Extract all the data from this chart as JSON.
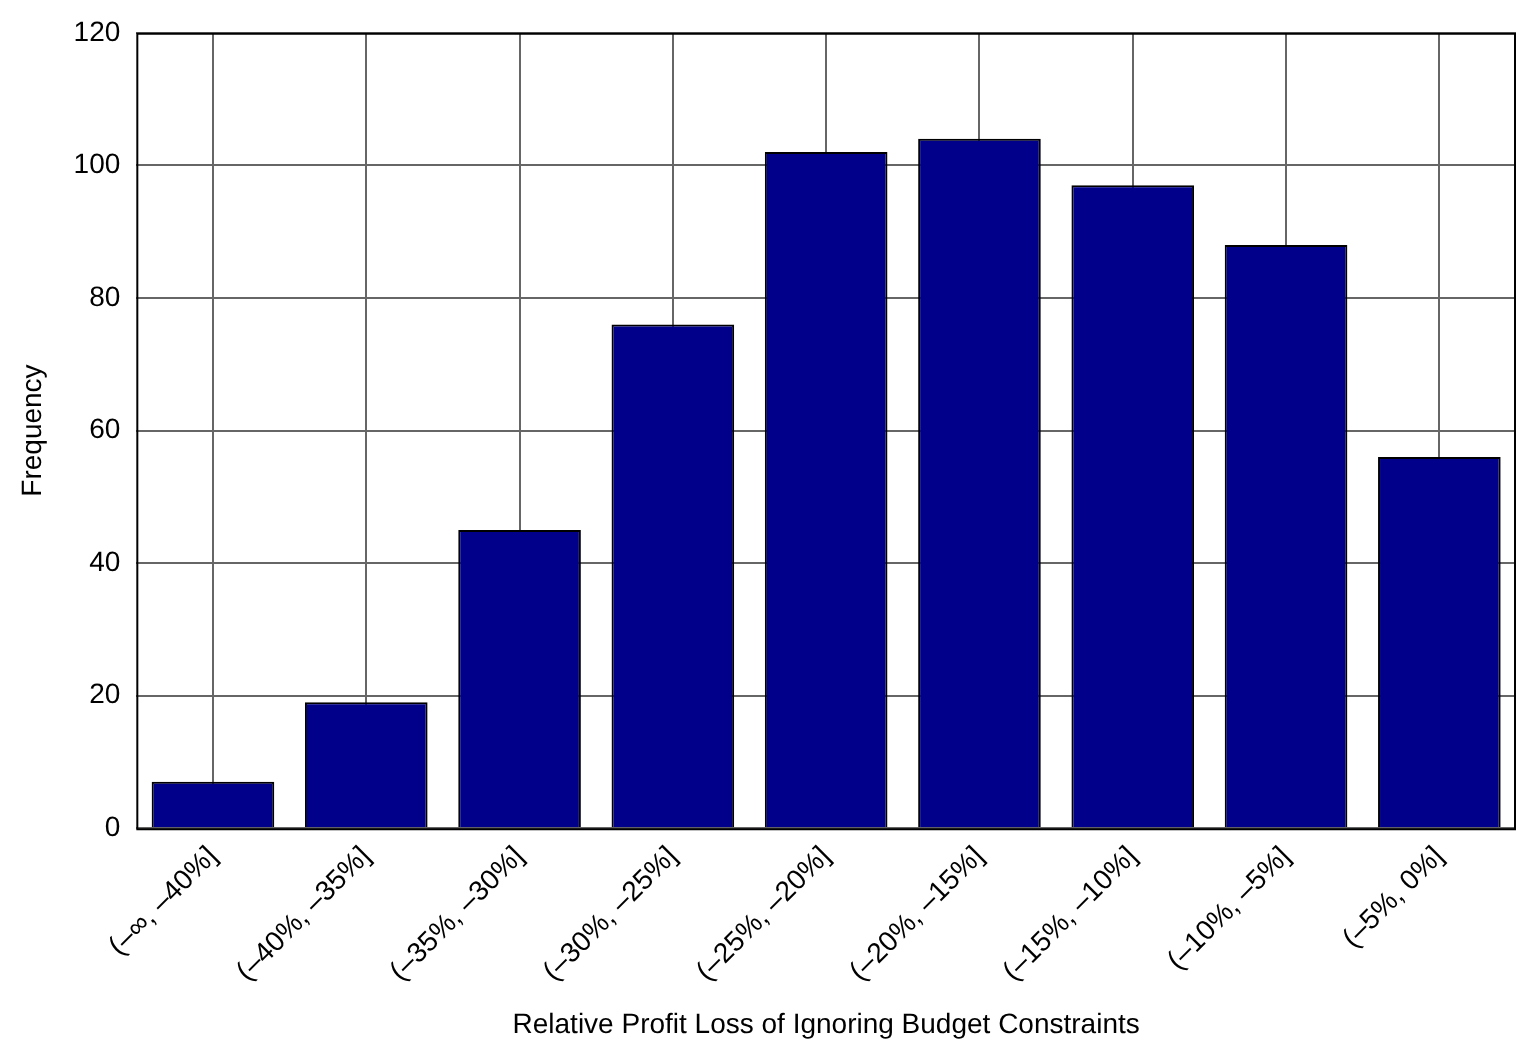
{
  "chart_data": {
    "type": "bar",
    "xlabel": "Relative Profit Loss of Ignoring Budget Constraints",
    "ylabel": "Frequency",
    "categories": [
      "(–∞, –40%]",
      "(–40%, –35%]",
      "(–35%, –30%]",
      "(–30%, –25%]",
      "(–25%, –20%]",
      "(–20%, –15%]",
      "(–15%, –10%]",
      "(–10%, –5%]",
      "(–5%, 0%]"
    ],
    "values": [
      7,
      19,
      45,
      76,
      102,
      104,
      97,
      88,
      56
    ],
    "color": "#00008b",
    "ylim": [
      0,
      120
    ],
    "yticks": [
      0,
      20,
      40,
      60,
      80,
      100,
      120
    ],
    "grid": true,
    "legend": false
  }
}
